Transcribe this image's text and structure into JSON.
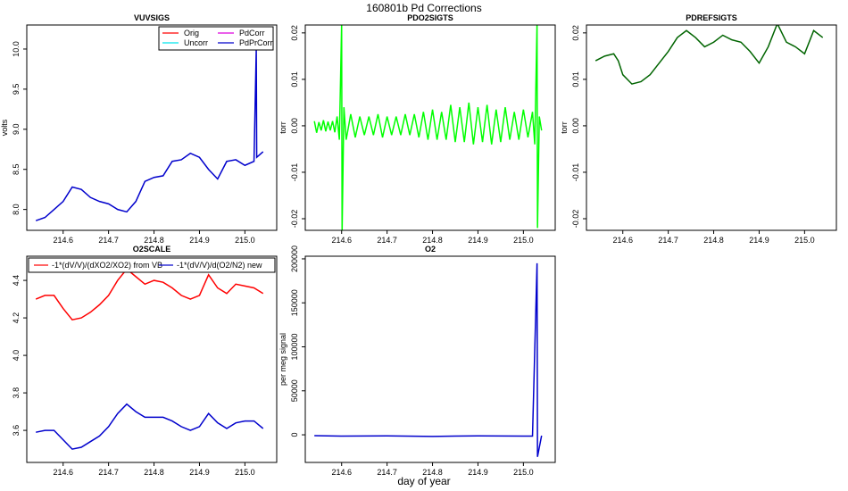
{
  "title": "160801b   Pd Corrections",
  "xlabel": "day of year",
  "chart_data": [
    {
      "type": "line",
      "title": "VUVSIGS",
      "ylabel": "volts",
      "xlim": [
        214.52,
        215.07
      ],
      "xticks": [
        214.6,
        214.7,
        214.8,
        214.9,
        {
          "value": 215,
          "label": "215.0"
        }
      ],
      "ylim": [
        7.74,
        10.3
      ],
      "yticks": [
        {
          "value": 8,
          "label": "8.0"
        },
        8.5,
        {
          "value": 9,
          "label": "9.0"
        },
        9.5,
        {
          "value": 10,
          "label": "10.0"
        }
      ],
      "legend_entries": [
        {
          "name": "Orig",
          "color": "#ff0000"
        },
        {
          "name": "Uncorr",
          "color": "#00e5ee"
        },
        {
          "name": "PdCorr",
          "color": "#dd00dd"
        },
        {
          "name": "PdPrCorr",
          "color": "#0000cc"
        }
      ],
      "series": [
        {
          "color": "#0000cc",
          "x": [
            214.54,
            214.56,
            214.58,
            214.6,
            214.62,
            214.64,
            214.66,
            214.68,
            214.7,
            214.72,
            214.74,
            214.76,
            214.78,
            214.8,
            214.82,
            214.84,
            214.86,
            214.88,
            214.9,
            214.92,
            214.94,
            214.96,
            214.98,
            215.0,
            215.02,
            215.025,
            215.026,
            215.04
          ],
          "values": [
            7.86,
            7.9,
            8.0,
            8.1,
            8.28,
            8.25,
            8.15,
            8.1,
            8.07,
            8.0,
            7.97,
            8.1,
            8.35,
            8.4,
            8.42,
            8.6,
            8.62,
            8.7,
            8.65,
            8.5,
            8.38,
            8.6,
            8.62,
            8.55,
            8.6,
            10.0,
            8.65,
            8.72
          ]
        }
      ]
    },
    {
      "type": "line",
      "title": "PDO2SIGTS",
      "ylabel": "torr",
      "xlim": [
        214.52,
        215.07
      ],
      "xticks": [
        214.6,
        214.7,
        214.8,
        214.9,
        {
          "value": 215,
          "label": "215.0"
        }
      ],
      "ylim": [
        -0.0225,
        0.0217
      ],
      "yticks": [
        -0.02,
        -0.01,
        {
          "value": 0,
          "label": "0.00"
        },
        0.01,
        0.02
      ],
      "series": [
        {
          "color": "#00ff00",
          "x": [
            214.54,
            214.545,
            214.55,
            214.555,
            214.56,
            214.565,
            214.57,
            214.575,
            214.58,
            214.585,
            214.59,
            214.595,
            214.6,
            214.601,
            214.605,
            214.61,
            214.62,
            214.63,
            214.64,
            214.65,
            214.66,
            214.67,
            214.68,
            214.69,
            214.7,
            214.71,
            214.72,
            214.73,
            214.74,
            214.75,
            214.76,
            214.77,
            214.78,
            214.79,
            214.8,
            214.81,
            214.82,
            214.83,
            214.84,
            214.85,
            214.86,
            214.87,
            214.88,
            214.89,
            214.9,
            214.91,
            214.92,
            214.93,
            214.94,
            214.95,
            214.96,
            214.97,
            214.98,
            214.99,
            215.0,
            215.01,
            215.02,
            215.025,
            215.03,
            215.031,
            215.035,
            215.04
          ],
          "values": [
            0.001,
            -0.0015,
            0.0008,
            -0.001,
            0.0012,
            -0.0012,
            0.0009,
            -0.001,
            0.001,
            -0.0014,
            0.002,
            -0.003,
            0.022,
            -0.023,
            0.004,
            -0.003,
            0.0025,
            -0.0025,
            0.002,
            -0.002,
            0.002,
            -0.002,
            0.0025,
            -0.0025,
            0.002,
            -0.002,
            0.002,
            -0.002,
            0.0025,
            -0.002,
            0.0025,
            -0.0025,
            0.003,
            -0.003,
            0.0035,
            -0.003,
            0.003,
            -0.003,
            0.0045,
            -0.0035,
            0.004,
            -0.0035,
            0.005,
            -0.004,
            0.004,
            -0.0035,
            0.0045,
            -0.004,
            0.0035,
            -0.0035,
            0.004,
            -0.003,
            0.003,
            -0.003,
            0.0035,
            -0.0025,
            0.003,
            -0.004,
            0.022,
            -0.022,
            0.002,
            -0.001
          ]
        }
      ]
    },
    {
      "type": "line",
      "title": "PDREFSIGTS",
      "ylabel": "torr",
      "xlim": [
        214.52,
        215.07
      ],
      "xticks": [
        214.6,
        214.7,
        214.8,
        214.9,
        {
          "value": 215,
          "label": "215.0"
        }
      ],
      "ylim": [
        -0.0225,
        0.0217
      ],
      "yticks": [
        -0.02,
        -0.01,
        {
          "value": 0,
          "label": "0.00"
        },
        0.01,
        0.02
      ],
      "series": [
        {
          "color": "#006400",
          "x": [
            214.54,
            214.56,
            214.58,
            214.59,
            214.6,
            214.62,
            214.64,
            214.66,
            214.68,
            214.7,
            214.72,
            214.74,
            214.76,
            214.78,
            214.8,
            214.82,
            214.84,
            214.86,
            214.88,
            214.9,
            214.92,
            214.94,
            214.96,
            214.98,
            215.0,
            215.02,
            215.04
          ],
          "values": [
            0.014,
            0.015,
            0.0155,
            0.014,
            0.011,
            0.009,
            0.0095,
            0.011,
            0.0135,
            0.016,
            0.019,
            0.0205,
            0.019,
            0.017,
            0.018,
            0.0195,
            0.0185,
            0.018,
            0.016,
            0.0135,
            0.017,
            0.022,
            0.018,
            0.017,
            0.0155,
            0.0205,
            0.019
          ]
        }
      ]
    },
    {
      "type": "line",
      "title": "O2SCALE",
      "xlim": [
        214.52,
        215.07
      ],
      "xticks": [
        214.6,
        214.7,
        214.8,
        214.9,
        {
          "value": 215,
          "label": "215.0"
        }
      ],
      "ylim": [
        3.429,
        4.529
      ],
      "yticks": [
        3.6,
        3.8,
        {
          "value": 4,
          "label": "4.0"
        },
        4.2,
        4.4
      ],
      "series": [
        {
          "name": "-1*(dV/V)/(dXO2/XO2) from VB",
          "color": "#ff0000",
          "x": [
            214.54,
            214.56,
            214.58,
            214.6,
            214.62,
            214.64,
            214.66,
            214.68,
            214.7,
            214.72,
            214.74,
            214.76,
            214.78,
            214.8,
            214.82,
            214.84,
            214.86,
            214.88,
            214.9,
            214.92,
            214.94,
            214.96,
            214.98,
            215.0,
            215.02,
            215.04
          ],
          "values": [
            4.3,
            4.32,
            4.32,
            4.25,
            4.19,
            4.2,
            4.23,
            4.27,
            4.32,
            4.4,
            4.46,
            4.42,
            4.38,
            4.4,
            4.39,
            4.36,
            4.32,
            4.3,
            4.32,
            4.43,
            4.36,
            4.33,
            4.38,
            4.37,
            4.36,
            4.33
          ]
        },
        {
          "name": "-1*(dV/V)/d(O2/N2) new",
          "color": "#0000cc",
          "x": [
            214.54,
            214.56,
            214.58,
            214.6,
            214.62,
            214.64,
            214.66,
            214.68,
            214.7,
            214.72,
            214.74,
            214.76,
            214.78,
            214.8,
            214.82,
            214.84,
            214.86,
            214.88,
            214.9,
            214.92,
            214.94,
            214.96,
            214.98,
            215.0,
            215.02,
            215.04
          ],
          "values": [
            3.59,
            3.6,
            3.6,
            3.55,
            3.5,
            3.51,
            3.54,
            3.57,
            3.62,
            3.69,
            3.74,
            3.7,
            3.67,
            3.67,
            3.67,
            3.65,
            3.62,
            3.6,
            3.62,
            3.69,
            3.64,
            3.61,
            3.64,
            3.65,
            3.65,
            3.61
          ]
        }
      ]
    },
    {
      "type": "line",
      "title": "O2",
      "ylabel": "per meg signal",
      "xlim": [
        214.52,
        215.07
      ],
      "xticks": [
        214.6,
        214.7,
        214.8,
        214.9,
        {
          "value": 215,
          "label": "215.0"
        }
      ],
      "ylim": [
        -31400,
        203000
      ],
      "yticks": [
        0,
        50000,
        100000,
        150000,
        200000
      ],
      "series": [
        {
          "color": "#0000cc",
          "x": [
            214.54,
            214.6,
            214.7,
            214.8,
            214.9,
            215.0,
            215.02,
            215.03,
            215.031,
            215.04
          ],
          "values": [
            -1000,
            -1500,
            -1200,
            -1800,
            -1200,
            -1500,
            -1500,
            195000,
            -25000,
            -1000
          ]
        }
      ]
    }
  ]
}
